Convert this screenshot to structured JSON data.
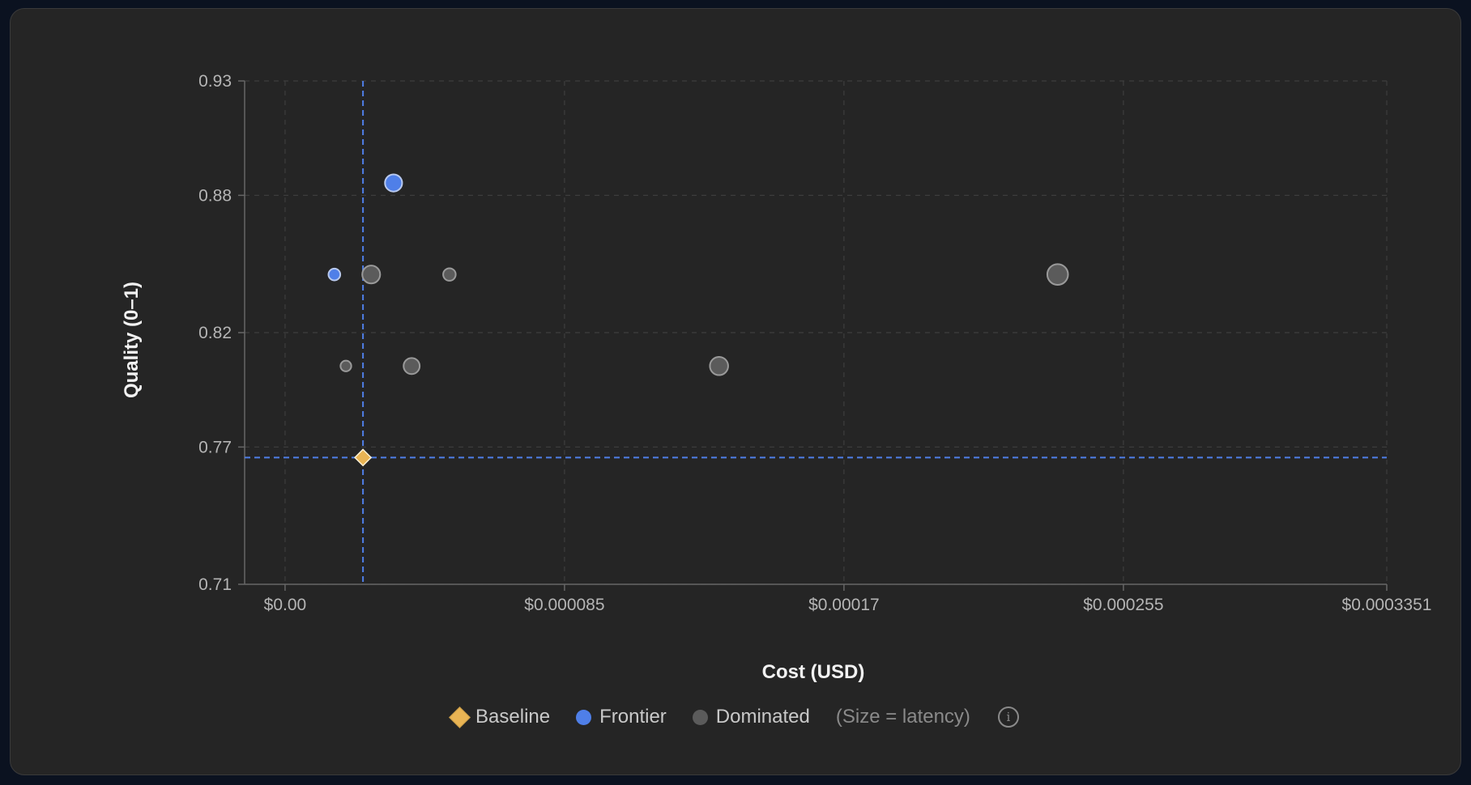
{
  "chart_data": {
    "type": "scatter",
    "xlabel": "Cost (USD)",
    "ylabel": "Quality (0–1)",
    "xlim": [
      -1.23e-05,
      0.0003351
    ],
    "ylim": [
      0.71,
      0.93
    ],
    "x_ticks": [
      0,
      8.5e-05,
      0.00017,
      0.000255,
      0.0003351
    ],
    "x_tick_labels": [
      "$0.00",
      "$0.000085",
      "$0.00017",
      "$0.000255",
      "$0.0003351"
    ],
    "y_ticks": [
      0.71,
      0.77,
      0.82,
      0.88,
      0.93
    ],
    "y_tick_labels": [
      "0.71",
      "0.77",
      "0.82",
      "0.88",
      "0.93"
    ],
    "grid": true,
    "reference_lines": {
      "x": 2.37e-05,
      "y": 0.7654
    },
    "series": [
      {
        "name": "Baseline",
        "marker": "diamond",
        "color": "#e9b454",
        "points": [
          {
            "x": 2.37e-05,
            "y": 0.7654,
            "latency": 2
          }
        ]
      },
      {
        "name": "Frontier",
        "marker": "circle",
        "color": "#4f7fe8",
        "points": [
          {
            "x": 1.5e-05,
            "y": 0.8454,
            "latency": 1.5
          },
          {
            "x": 3.3e-05,
            "y": 0.8854,
            "latency": 3
          }
        ]
      },
      {
        "name": "Dominated",
        "marker": "circle",
        "color": "#5b5b5b",
        "points": [
          {
            "x": 1.85e-05,
            "y": 0.8054,
            "latency": 1.2
          },
          {
            "x": 2.62e-05,
            "y": 0.8454,
            "latency": 3.2
          },
          {
            "x": 3.85e-05,
            "y": 0.8054,
            "latency": 2.7
          },
          {
            "x": 5e-05,
            "y": 0.8454,
            "latency": 1.7
          },
          {
            "x": 0.000132,
            "y": 0.8054,
            "latency": 3.3
          },
          {
            "x": 0.000235,
            "y": 0.8454,
            "latency": 4
          }
        ]
      }
    ]
  },
  "legend": {
    "items": [
      {
        "label": "Baseline"
      },
      {
        "label": "Frontier"
      },
      {
        "label": "Dominated"
      }
    ],
    "note": "(Size = latency)",
    "info_icon": "info-icon"
  }
}
